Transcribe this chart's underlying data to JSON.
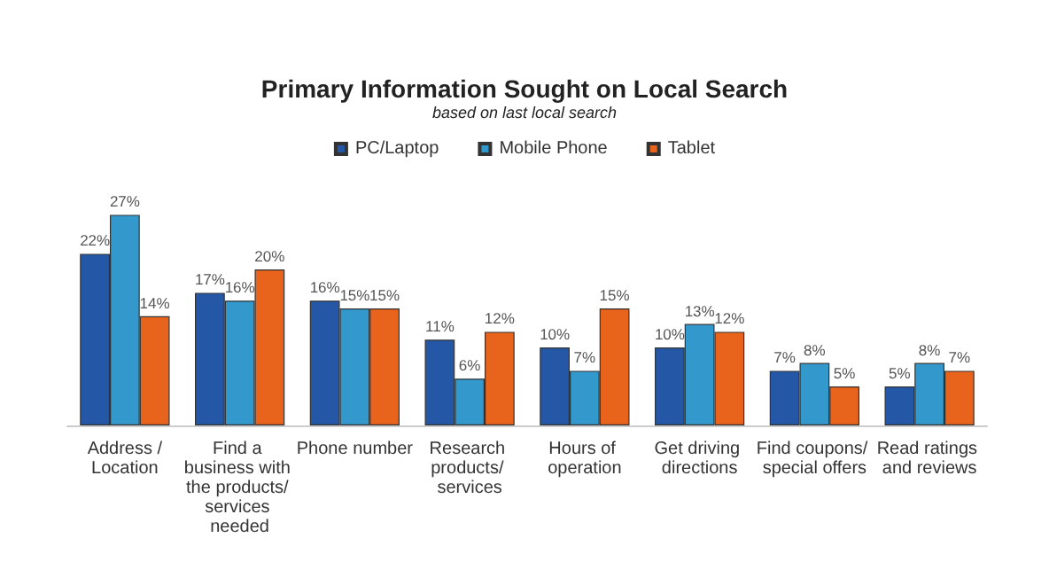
{
  "chart_data": {
    "type": "bar",
    "title": "Primary Information Sought on Local Search",
    "subtitle": "based on last local search",
    "categories": [
      "Address /Location",
      "Find a business with the products/ services needed",
      "Phone number",
      "Research products/ services",
      "Hours of operation",
      "Get driving directions",
      "Find coupons/ special offers",
      "Read ratings and reviews"
    ],
    "series": [
      {
        "name": "PC/Laptop",
        "color": "#2458a6",
        "values": [
          22,
          17,
          16,
          11,
          10,
          10,
          7,
          5
        ],
        "value_labels": [
          "22%",
          "17%",
          "16%",
          "11%",
          "10%",
          "10%",
          "7%",
          "5%"
        ]
      },
      {
        "name": "Mobile Phone",
        "color": "#3399cc",
        "values": [
          27,
          16,
          15,
          6,
          7,
          13,
          8,
          8
        ],
        "value_labels": [
          "27%",
          "16%",
          "15%",
          "6%",
          "7%",
          "13%",
          "8%",
          "8%"
        ]
      },
      {
        "name": "Tablet",
        "color": "#e8641c",
        "values": [
          14,
          20,
          15,
          12,
          15,
          12,
          5,
          7
        ],
        "value_labels": [
          "14%",
          "20%",
          "15%",
          "12%",
          "15%",
          "12%",
          "5%",
          "7%"
        ]
      }
    ],
    "legend": "top"
  }
}
